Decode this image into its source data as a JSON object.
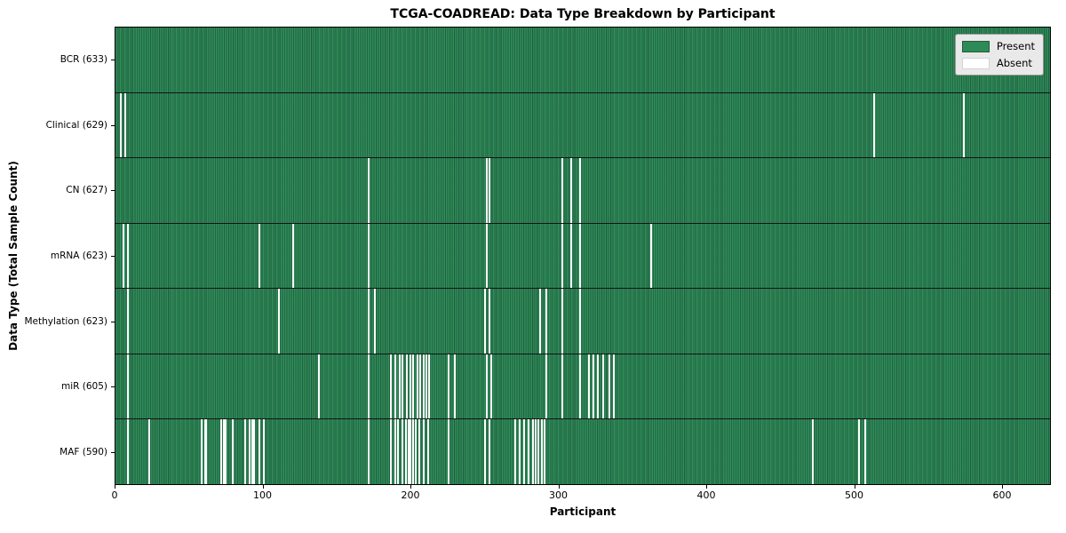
{
  "chart_data": {
    "type": "heatmap",
    "title": "TCGA-COADREAD: Data Type Breakdown by Participant",
    "xlabel": "Participant",
    "ylabel": "Data Type (Total Sample Count)",
    "x_range": [
      0,
      633
    ],
    "x_ticks": [
      0,
      100,
      200,
      300,
      400,
      500,
      600
    ],
    "total_participants": 633,
    "grid": false,
    "colors": {
      "present": "#2e8b57",
      "present_edge": "#1f5f3e",
      "absent": "#ffffff",
      "legend_background": "#e9e9e9"
    },
    "legend": {
      "position": "upper right",
      "entries": [
        {
          "label": "Present",
          "color": "#2e8b57"
        },
        {
          "label": "Absent",
          "color": "#ffffff"
        }
      ]
    },
    "rows": [
      {
        "label": "BCR",
        "count": 633,
        "absent": []
      },
      {
        "label": "Clinical",
        "count": 629,
        "absent": [
          3,
          6,
          513,
          574
        ]
      },
      {
        "label": "CN",
        "count": 627,
        "absent": [
          171,
          251,
          253,
          302,
          308,
          314
        ]
      },
      {
        "label": "mRNA",
        "count": 623,
        "absent": [
          5,
          8,
          97,
          120,
          171,
          251,
          302,
          308,
          314,
          362
        ]
      },
      {
        "label": "Methylation",
        "count": 623,
        "absent": [
          8,
          110,
          171,
          175,
          250,
          253,
          287,
          291,
          302,
          314
        ]
      },
      {
        "label": "miR",
        "count": 605,
        "absent": [
          8,
          137,
          171,
          186,
          189,
          192,
          194,
          197,
          199,
          201,
          204,
          206,
          208,
          210,
          212,
          225,
          229,
          251,
          254,
          291,
          302,
          314,
          320,
          323,
          326,
          330,
          334,
          337
        ]
      },
      {
        "label": "MAF",
        "count": 590,
        "absent": [
          8,
          22,
          58,
          60,
          61,
          71,
          73,
          74,
          79,
          87,
          90,
          92,
          93,
          97,
          100,
          171,
          186,
          189,
          191,
          194,
          196,
          198,
          199,
          201,
          203,
          205,
          208,
          211,
          225,
          250,
          253,
          270,
          273,
          276,
          279,
          282,
          284,
          286,
          288,
          290,
          472,
          503,
          507
        ]
      }
    ]
  }
}
